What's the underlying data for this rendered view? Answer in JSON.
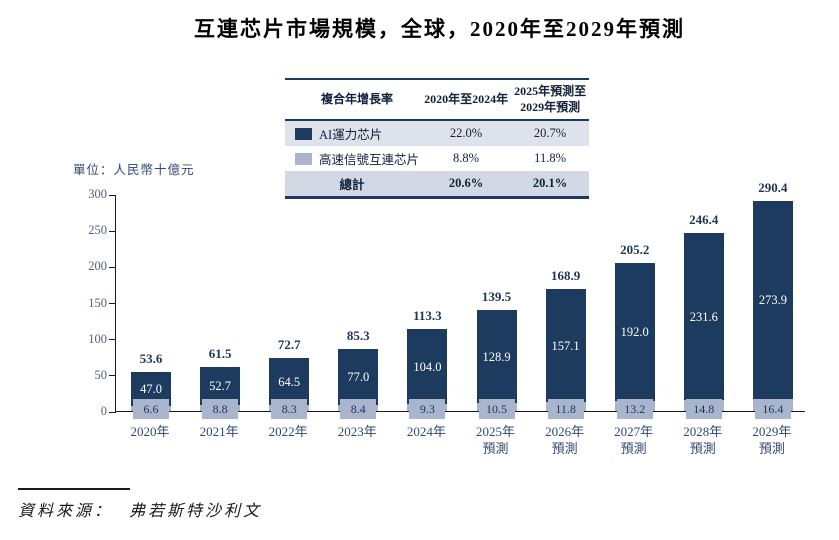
{
  "title": "互連芯片市場規模，全球，2020年至2029年預測",
  "unit_label": "單位：人民幣十億元",
  "cagr_table": {
    "header_col1": "複合年增長率",
    "header_col2": "2020年至2024年",
    "header_col3": [
      "2025年預測至",
      "2029年預測"
    ],
    "rows": [
      {
        "label": "AI運力芯片",
        "swatch_color": "#1d3a5f",
        "cagr_2020_2024": "22.0%",
        "cagr_2025_2029": "20.7%"
      },
      {
        "label": "高速信號互連芯片",
        "swatch_color": "#a8b5cd",
        "cagr_2020_2024": "8.8%",
        "cagr_2025_2029": "11.8%"
      }
    ],
    "total_row": {
      "label": "總計",
      "cagr_2020_2024": "20.6%",
      "cagr_2025_2029": "20.1%"
    }
  },
  "chart_data": {
    "type": "bar",
    "stacked": true,
    "title": "互連芯片市場規模，全球，2020年至2029年預測",
    "ylabel": "單位：人民幣十億元",
    "ylim": [
      0,
      300
    ],
    "yticks": [
      0,
      50,
      100,
      150,
      200,
      250,
      300
    ],
    "grid": false,
    "legend_position": "table-top",
    "categories": [
      {
        "line1": "2020年",
        "line2": ""
      },
      {
        "line1": "2021年",
        "line2": ""
      },
      {
        "line1": "2022年",
        "line2": ""
      },
      {
        "line1": "2023年",
        "line2": ""
      },
      {
        "line1": "2024年",
        "line2": ""
      },
      {
        "line1": "2025年",
        "line2": "預測"
      },
      {
        "line1": "2026年",
        "line2": "預測"
      },
      {
        "line1": "2027年",
        "line2": "預測"
      },
      {
        "line1": "2028年",
        "line2": "預測"
      },
      {
        "line1": "2029年",
        "line2": "預測"
      }
    ],
    "series": [
      {
        "name": "AI運力芯片",
        "color": "#1d3a5f",
        "position": "top",
        "values": [
          47.0,
          52.7,
          64.5,
          77.0,
          104.0,
          128.9,
          157.1,
          192.0,
          231.6,
          273.9
        ]
      },
      {
        "name": "高速信號互連芯片",
        "color": "#a8b5cd",
        "position": "bottom",
        "values": [
          6.6,
          8.8,
          8.3,
          8.4,
          9.3,
          10.5,
          11.8,
          13.2,
          14.8,
          16.4
        ]
      }
    ],
    "totals": [
      53.6,
      61.5,
      72.7,
      85.3,
      113.3,
      139.5,
      168.9,
      205.2,
      246.4,
      290.4
    ]
  },
  "source": {
    "prefix": "資料來源：",
    "name": "弗若斯特沙利文"
  },
  "colors": {
    "navy": "#1d3a5f",
    "light_blue": "#a8b5cd",
    "row_tint": "#dee2ea",
    "total_row_bg": "#d3d9e4",
    "axis_text": "#4e6384",
    "xlabel_text": "#2e4a72",
    "total_label_text": "#1e3556",
    "axis_line": "#1a1a1a"
  }
}
